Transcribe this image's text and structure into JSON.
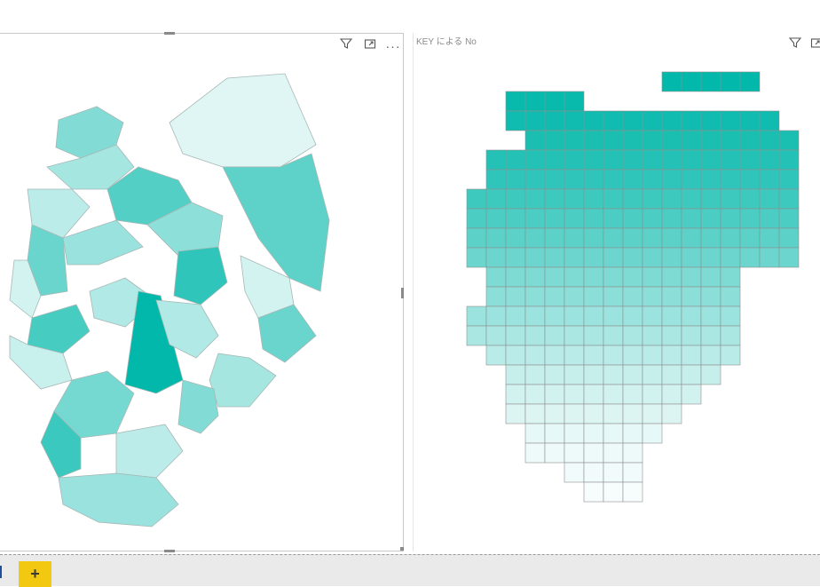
{
  "left_visual": {
    "title": "",
    "icons": [
      "filter-icon",
      "focus-mode-icon",
      "more-options-icon"
    ],
    "more_label": "···",
    "regions": [
      {
        "level": 0.45
      },
      {
        "level": 0.3
      },
      {
        "level": 0.2
      },
      {
        "level": 0.55
      },
      {
        "level": 0.1
      },
      {
        "level": 0.65
      },
      {
        "level": 0.35
      },
      {
        "level": 0.25
      },
      {
        "level": 0.7
      },
      {
        "level": 0.15
      },
      {
        "level": 0.4
      },
      {
        "level": 0.05
      },
      {
        "level": 0.6
      },
      {
        "level": 1.0
      },
      {
        "level": 0.8
      },
      {
        "level": 0.3
      },
      {
        "level": 0.5
      },
      {
        "level": 0.75
      },
      {
        "level": 0.2
      },
      {
        "level": 0.35
      },
      {
        "level": 0.45
      },
      {
        "level": 0.1
      },
      {
        "level": 0.55
      },
      {
        "level": 0.25
      }
    ]
  },
  "right_visual": {
    "title": "KEY による No",
    "icons": [
      "filter-icon",
      "focus-mode-icon"
    ]
  },
  "grid_rows": [
    {
      "from": 10,
      "to": 14,
      "level": 1.0
    },
    {
      "from": 2,
      "to": 5,
      "level": 0.97
    },
    {
      "from": 2,
      "to": 15,
      "level": 0.94
    },
    {
      "from": 3,
      "to": 16,
      "level": 0.9
    },
    {
      "from": 1,
      "to": 16,
      "level": 0.86
    },
    {
      "from": 1,
      "to": 16,
      "level": 0.81
    },
    {
      "from": 0,
      "to": 16,
      "level": 0.76
    },
    {
      "from": 0,
      "to": 16,
      "level": 0.7
    },
    {
      "from": 0,
      "to": 16,
      "level": 0.64
    },
    {
      "from": 0,
      "to": 16,
      "level": 0.57
    },
    {
      "from": 1,
      "to": 13,
      "level": 0.5
    },
    {
      "from": 1,
      "to": 13,
      "level": 0.44
    },
    {
      "from": 0,
      "to": 13,
      "level": 0.38
    },
    {
      "from": 0,
      "to": 13,
      "level": 0.32
    },
    {
      "from": 1,
      "to": 13,
      "level": 0.26
    },
    {
      "from": 2,
      "to": 12,
      "level": 0.21
    },
    {
      "from": 2,
      "to": 11,
      "level": 0.16
    },
    {
      "from": 2,
      "to": 10,
      "level": 0.12
    },
    {
      "from": 3,
      "to": 9,
      "level": 0.08
    },
    {
      "from": 3,
      "to": 8,
      "level": 0.05
    },
    {
      "from": 5,
      "to": 8,
      "level": 0.03
    },
    {
      "from": 6,
      "to": 8,
      "level": 0.01
    }
  ],
  "colors": {
    "accent": "#01b8aa",
    "light": "#ffffff",
    "grid_stroke": "#8f8f8f",
    "map_stroke": "#a7b8b6",
    "add_page": "#f2c811"
  },
  "bottom_bar": {
    "add_page_label": "+"
  }
}
